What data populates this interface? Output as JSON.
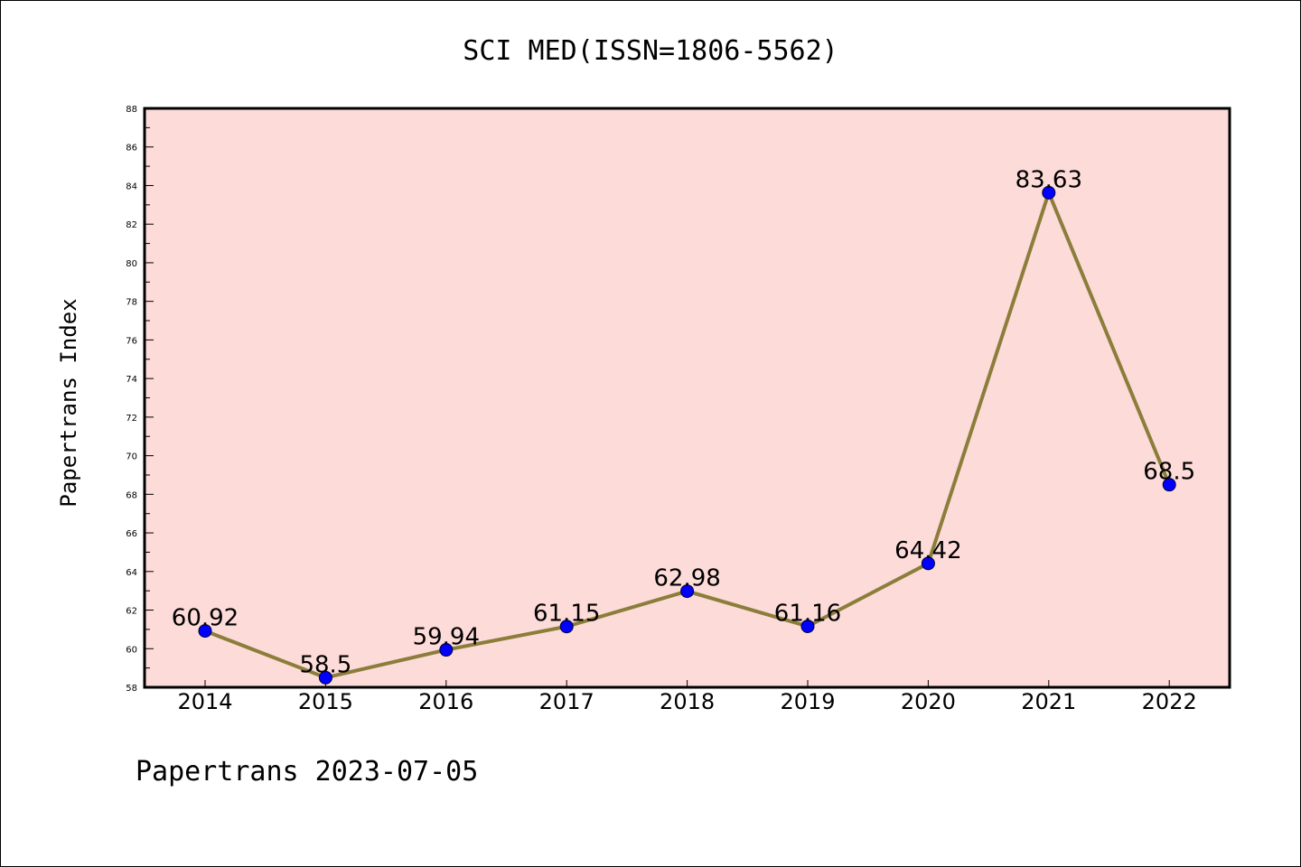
{
  "chart_data": {
    "type": "line",
    "title": "SCI MED(ISSN=1806-5562)",
    "xlabel": "",
    "ylabel": "Papertrans Index",
    "categories": [
      "2014",
      "2015",
      "2016",
      "2017",
      "2018",
      "2019",
      "2020",
      "2021",
      "2022"
    ],
    "values": [
      60.92,
      58.5,
      59.94,
      61.15,
      62.98,
      61.16,
      64.42,
      83.63,
      68.5
    ],
    "data_labels": [
      "60.92",
      "58.5",
      "59.94",
      "61.15",
      "62.98",
      "61.16",
      "64.42",
      "83.63",
      "68.5"
    ],
    "ylim": [
      58,
      88
    ],
    "yticks": [
      58,
      60,
      62,
      64,
      66,
      68,
      70,
      72,
      74,
      76,
      78,
      80,
      82,
      84,
      86,
      88
    ],
    "grid": false,
    "legend": "none",
    "colors": {
      "plot_background": "#fddbd9",
      "line": "#8b7d3a",
      "marker": "#0000ff",
      "axes": "#000000"
    }
  },
  "footer": {
    "text": "Papertrans 2023-07-05"
  }
}
